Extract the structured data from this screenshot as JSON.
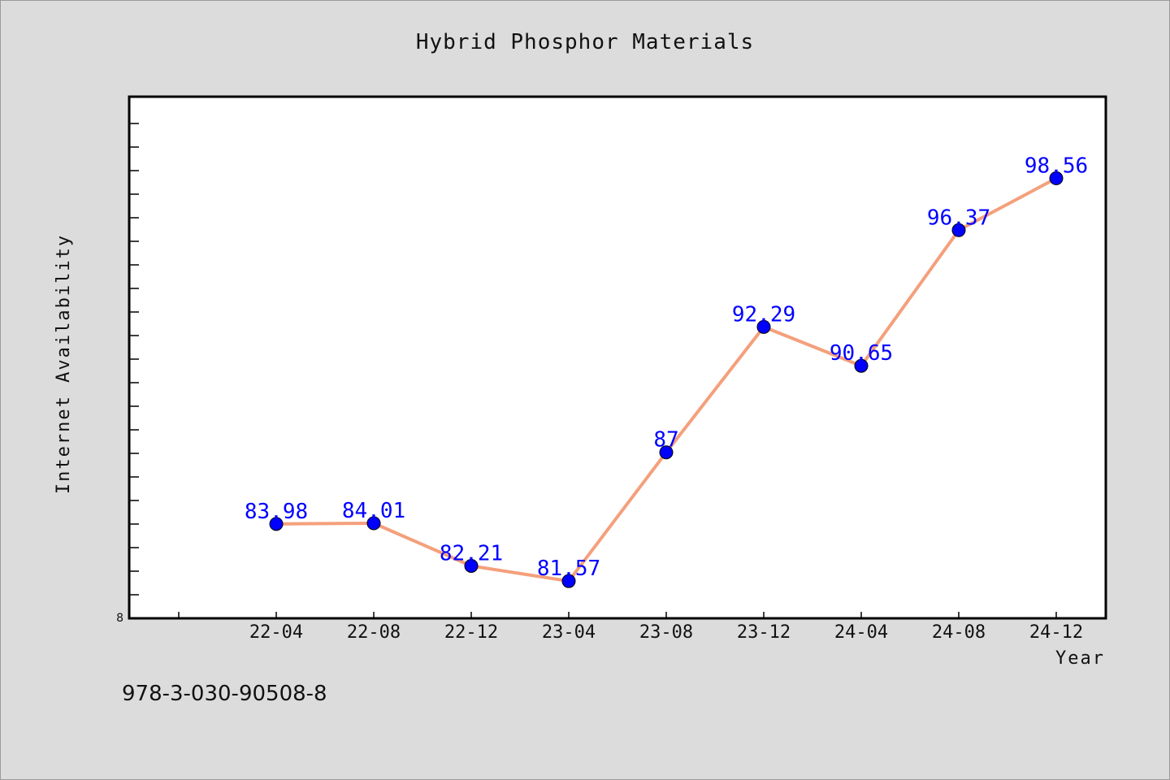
{
  "chart_data": {
    "type": "line",
    "title": "Hybrid Phosphor Materials",
    "xlabel": "Year",
    "ylabel": "Internet Availability",
    "categories": [
      "22-04",
      "22-08",
      "22-12",
      "23-04",
      "23-08",
      "23-12",
      "24-04",
      "24-08",
      "24-12"
    ],
    "values": [
      83.98,
      84.01,
      82.21,
      81.57,
      87,
      92.29,
      90.65,
      96.37,
      98.56
    ],
    "data_labels": [
      "83.98",
      "84.01",
      "82.21",
      "81.57",
      "87",
      "92.29",
      "90.65",
      "96.37",
      "98.56"
    ],
    "ytick_label": "8",
    "ylim": [
      80,
      102
    ],
    "grid": false,
    "legend": "none",
    "line_color": "#f4a07c",
    "marker_color": "#0000ff",
    "label_color": "#0000ff"
  },
  "footnote": "978-3-030-90508-8"
}
